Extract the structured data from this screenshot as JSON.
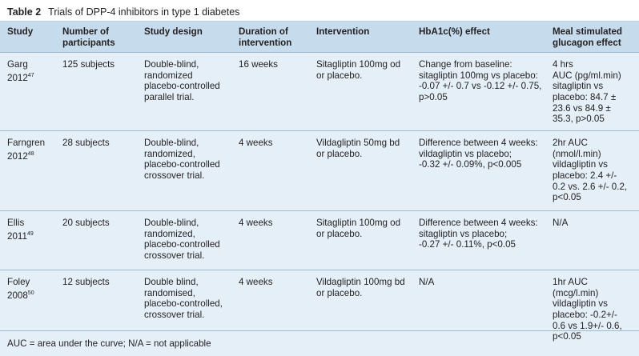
{
  "caption": {
    "number": "Table 2",
    "title": "Trials of DPP-4 inhibitors in type 1 diabetes"
  },
  "headers": [
    [
      "Study"
    ],
    [
      "Number of",
      "participants"
    ],
    [
      "Study design"
    ],
    [
      "Duration of",
      "intervention"
    ],
    [
      "Intervention"
    ],
    [
      "HbA1c(%) effect"
    ],
    [
      "Meal stimulated",
      "glucagon effect"
    ]
  ],
  "rows": [
    {
      "study": [
        "Garg",
        "2012"
      ],
      "ref": "47",
      "participants": [
        "125 subjects"
      ],
      "design": [
        "Double-blind,",
        "randomized",
        "placebo-controlled",
        "parallel trial."
      ],
      "duration": [
        "16 weeks"
      ],
      "intervention": [
        "Sitagliptin 100mg od",
        "or placebo."
      ],
      "hba1c": [
        "Change from baseline:",
        "sitagliptin 100mg vs placebo:",
        "-0.07 +/- 0.7 vs -0.12 +/- 0.75,",
        "p>0.05"
      ],
      "glucagon": [
        "4 hrs",
        "AUC (pg/ml.min)",
        "sitagliptin vs",
        "placebo: 84.7 ±",
        "23.6 vs 84.9 ±",
        "35.3,  p>0.05"
      ]
    },
    {
      "study": [
        "Farngren",
        "2012"
      ],
      "ref": "48",
      "participants": [
        "28 subjects"
      ],
      "design": [
        "Double-blind,",
        "randomized,",
        "placebo-controlled",
        "crossover trial."
      ],
      "duration": [
        "4 weeks"
      ],
      "intervention": [
        "Vildagliptin 50mg bd",
        "or placebo."
      ],
      "hba1c": [
        "Difference between 4 weeks:",
        "vildagliptin vs placebo;",
        "-0.32 +/- 0.09%, p<0.005"
      ],
      "glucagon": [
        "2hr AUC",
        "(nmol/l.min)",
        "vildagliptin vs",
        "placebo: 2.4 +/-",
        "0.2 vs. 2.6 +/- 0.2,",
        "p<0.05"
      ]
    },
    {
      "study": [
        "Ellis",
        "2011"
      ],
      "ref": "49",
      "participants": [
        "20 subjects"
      ],
      "design": [
        "Double-blind,",
        "randomized,",
        "placebo-controlled",
        "crossover trial."
      ],
      "duration": [
        "4 weeks"
      ],
      "intervention": [
        "Sitagliptin 100mg od",
        "or placebo."
      ],
      "hba1c": [
        "Difference between 4 weeks:",
        "sitagliptin vs placebo;",
        "-0.27 +/- 0.11%, p<0.05"
      ],
      "glucagon": [
        "N/A"
      ]
    },
    {
      "study": [
        "Foley",
        "2008"
      ],
      "ref": "50",
      "participants": [
        "12 subjects"
      ],
      "design": [
        "Double blind,",
        "randomised,",
        "placebo-controlled,",
        "crossover trial."
      ],
      "duration": [
        "4 weeks"
      ],
      "intervention": [
        "Vildagliptin 100mg bd",
        "or placebo."
      ],
      "hba1c": [
        "N/A"
      ],
      "glucagon": [
        "1hr AUC (mcg/l.min)",
        "vildagliptin vs",
        "placebo: -0.2+/-",
        "0.6 vs 1.9+/- 0.6,",
        "p<0.05"
      ]
    }
  ],
  "footnote": "AUC = area under the curve; N/A = not applicable"
}
